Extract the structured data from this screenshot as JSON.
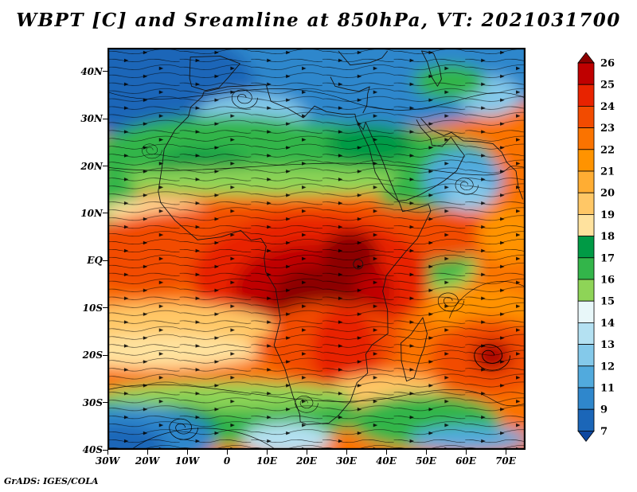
{
  "title": "WBPT [C] and Sreamline at 850hPa, VT: 2021031700",
  "attribution": "GrADS: IGES/COLA",
  "chart_data": {
    "type": "heatmap",
    "title": "WBPT [C] and Sreamline at 850hPa, VT: 2021031700",
    "variable": "WBPT",
    "units": "C",
    "overlay": "Streamline",
    "level": "850hPa",
    "valid_time": "2021031700",
    "lon_range": [
      -30,
      75
    ],
    "lat_range": [
      -40,
      45
    ],
    "grid": false,
    "legend_position": "right",
    "x_ticks": [
      {
        "label": "30W",
        "lon": -30
      },
      {
        "label": "20W",
        "lon": -20
      },
      {
        "label": "10W",
        "lon": -10
      },
      {
        "label": "0",
        "lon": 0
      },
      {
        "label": "10E",
        "lon": 10
      },
      {
        "label": "20E",
        "lon": 20
      },
      {
        "label": "30E",
        "lon": 30
      },
      {
        "label": "40E",
        "lon": 40
      },
      {
        "label": "50E",
        "lon": 50
      },
      {
        "label": "60E",
        "lon": 60
      },
      {
        "label": "70E",
        "lon": 70
      }
    ],
    "y_ticks": [
      {
        "label": "40N",
        "lat": 40
      },
      {
        "label": "30N",
        "lat": 30
      },
      {
        "label": "20N",
        "lat": 20
      },
      {
        "label": "10N",
        "lat": 10
      },
      {
        "label": "EQ",
        "lat": 0
      },
      {
        "label": "10S",
        "lat": -10
      },
      {
        "label": "20S",
        "lat": -20
      },
      {
        "label": "30S",
        "lat": -30
      },
      {
        "label": "40S",
        "lat": -40
      }
    ],
    "colorbar_labels": [
      "26",
      "25",
      "24",
      "23",
      "22",
      "21",
      "20",
      "19",
      "18",
      "17",
      "16",
      "15",
      "14",
      "13",
      "12",
      "11",
      "9",
      "7"
    ],
    "colorbar_colors": [
      "#8c0000",
      "#bf0000",
      "#e82300",
      "#f24b00",
      "#fa7300",
      "#ff9300",
      "#ffad33",
      "#ffc766",
      "#ffe29e",
      "#009a45",
      "#33b54a",
      "#8ed457",
      "#e8f7f9",
      "#b4e1f2",
      "#84c9ea",
      "#51aadd",
      "#2f87cc",
      "#1b66b8",
      "#0d47a0"
    ],
    "field_summary": "Warm core (24-26C+) over central equatorial Africa; orange 20-23C across tropics; green 15-18C band over Sahara/Sahel and SE oceans; blue <14C over NW Atlantic/Europe, Arabian Sea patch and far South Atlantic; cyclonic vortex near 67E 20S"
  }
}
